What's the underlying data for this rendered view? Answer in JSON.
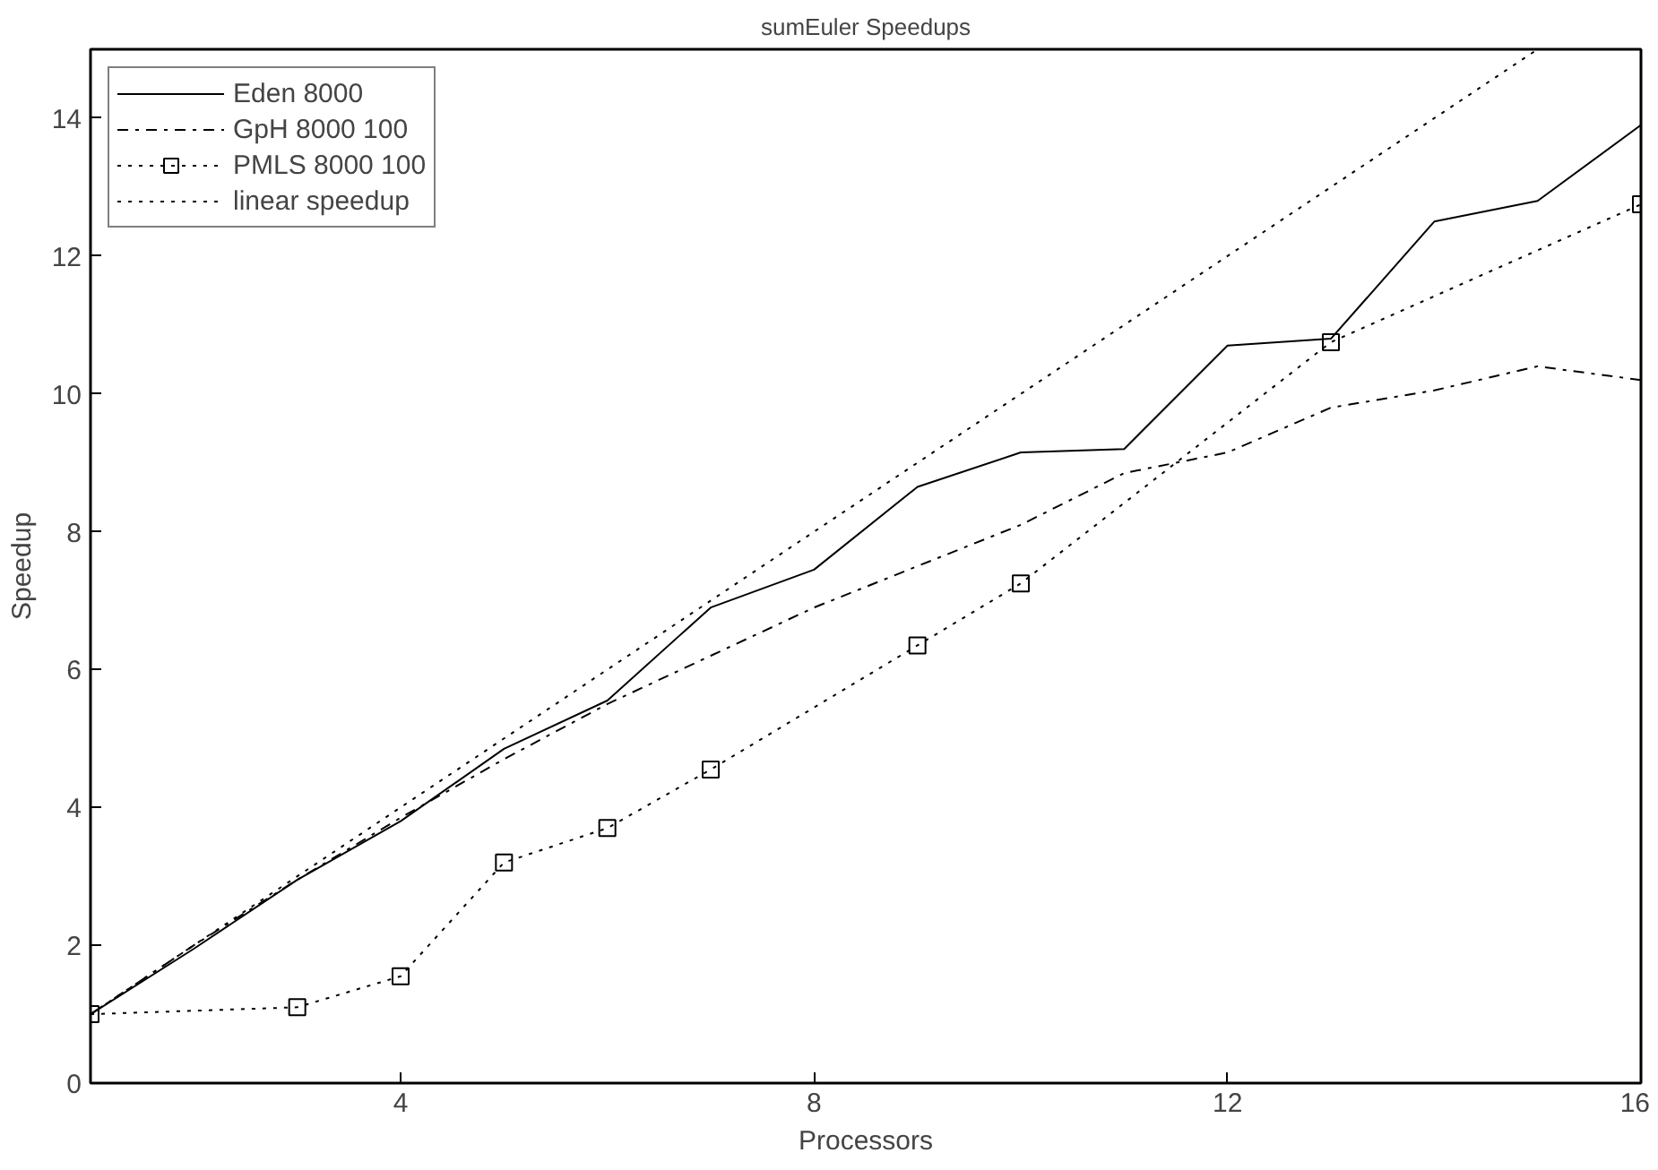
{
  "chart_data": {
    "type": "line",
    "title": "sumEuler Speedups",
    "xlabel": "Processors",
    "ylabel": "Speedup",
    "xlim": [
      1,
      16
    ],
    "ylim": [
      0,
      15
    ],
    "xticks": [
      4,
      8,
      12,
      16
    ],
    "yticks": [
      0,
      2,
      4,
      6,
      8,
      10,
      12,
      14
    ],
    "grid": false,
    "legend": "top left",
    "marker": "none",
    "series": [
      {
        "name": "Eden 8000",
        "color": "#000000",
        "line_style": "solid",
        "x": [
          1,
          2,
          3,
          4,
          5,
          6,
          7,
          8,
          9,
          10,
          11,
          12,
          13,
          14,
          15,
          16
        ],
        "values": [
          1.0,
          1.95,
          2.95,
          3.8,
          4.85,
          5.55,
          6.9,
          7.45,
          8.65,
          9.15,
          9.2,
          10.7,
          10.8,
          12.5,
          12.8,
          13.9
        ]
      },
      {
        "name": "GpH 8000 100",
        "color": "#000000",
        "line_style": "dashdot",
        "x": [
          1,
          2,
          3,
          4,
          5,
          6,
          7,
          8,
          9,
          10,
          11,
          12,
          13,
          14,
          15,
          16
        ],
        "values": [
          1.0,
          2.0,
          2.95,
          3.85,
          4.7,
          5.5,
          6.2,
          6.9,
          7.5,
          8.1,
          8.85,
          9.15,
          9.8,
          10.05,
          10.4,
          10.2
        ]
      },
      {
        "name": "PMLS 8000 100",
        "color": "#000000",
        "line_style": "dotted",
        "marker": "square",
        "x": [
          1,
          3,
          4,
          5,
          6,
          7,
          9,
          10,
          13,
          16
        ],
        "values": [
          1.0,
          1.1,
          1.55,
          3.2,
          3.7,
          4.55,
          6.35,
          7.25,
          10.75,
          12.75
        ]
      },
      {
        "name": "linear speedup",
        "color": "#000000",
        "line_style": "dotted",
        "x": [
          1,
          15
        ],
        "values": [
          1,
          15
        ]
      }
    ]
  }
}
